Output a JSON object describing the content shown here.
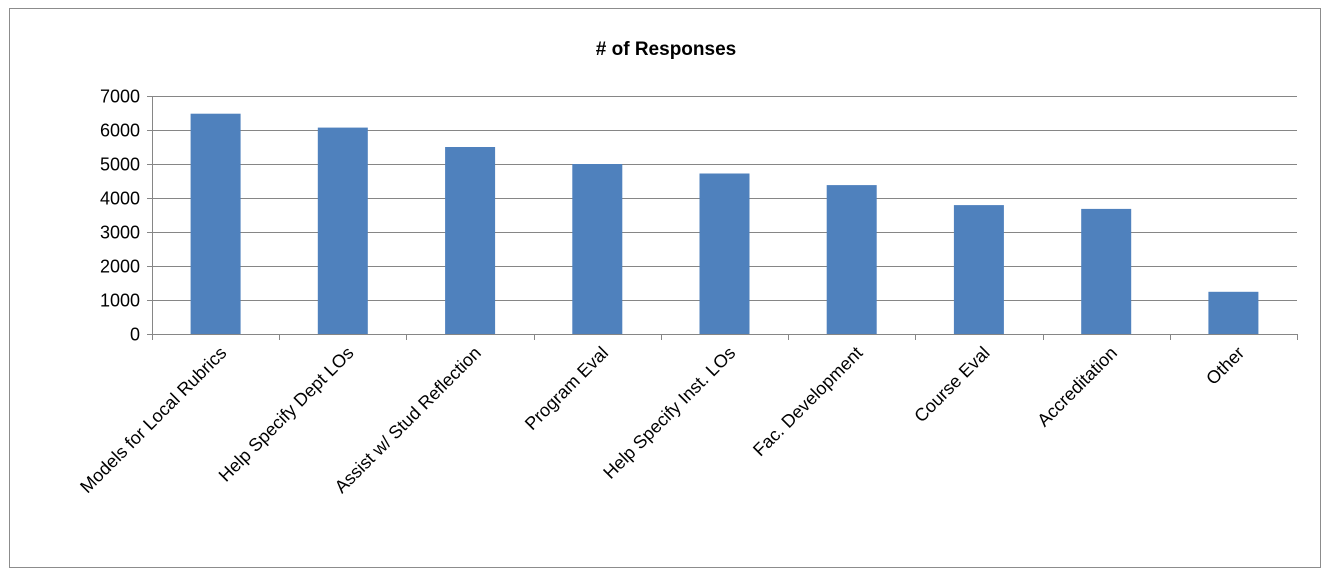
{
  "chart_data": {
    "type": "bar",
    "title": "# of Responses",
    "xlabel": "",
    "ylabel": "",
    "categories": [
      "Models for Local Rubrics",
      "Help Specify Dept LOs",
      "Assist w/ Stud Reflection",
      "Program Eval",
      "Help Specify Inst. LOs",
      "Fac. Development",
      "Course Eval",
      "Accreditation",
      "Other"
    ],
    "values": [
      6480,
      6070,
      5500,
      5000,
      4720,
      4380,
      3790,
      3680,
      1240
    ],
    "ylim": [
      0,
      7000
    ],
    "yticks": [
      "0",
      "1000",
      "2000",
      "3000",
      "4000",
      "5000",
      "6000",
      "7000"
    ],
    "grid": true,
    "legend": "none",
    "bar_color": "#4f81bd",
    "grid_color": "#868686"
  }
}
